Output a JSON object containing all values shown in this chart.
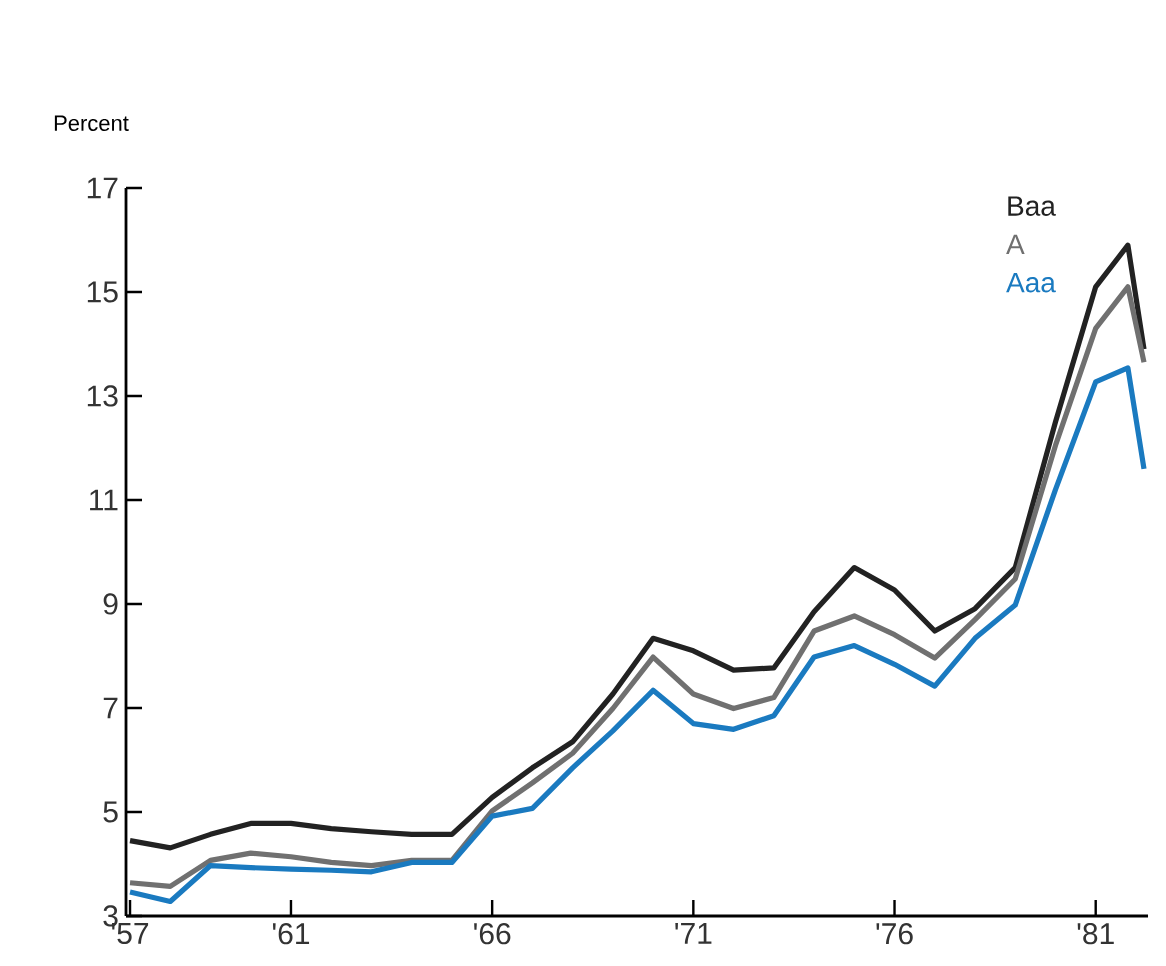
{
  "chart_data": {
    "type": "line",
    "ylabel": "Percent",
    "x": [
      1957,
      1958,
      1959,
      1960,
      1961,
      1962,
      1963,
      1964,
      1965,
      1966,
      1967,
      1968,
      1969,
      1970,
      1971,
      1972,
      1973,
      1974,
      1975,
      1976,
      1977,
      1978,
      1979,
      1980,
      1981,
      1981.8,
      1982.2
    ],
    "series": [
      {
        "name": "Baa",
        "color": "#222222",
        "values": [
          4.45,
          4.31,
          4.57,
          4.78,
          4.78,
          4.68,
          4.62,
          4.57,
          4.57,
          5.28,
          5.85,
          6.35,
          7.27,
          8.34,
          8.1,
          7.73,
          7.77,
          8.85,
          9.7,
          9.27,
          8.48,
          8.91,
          9.7,
          12.5,
          15.1,
          15.9,
          13.9
        ]
      },
      {
        "name": "A",
        "color": "#707070",
        "values": [
          3.64,
          3.57,
          4.07,
          4.21,
          4.14,
          4.03,
          3.97,
          4.07,
          4.07,
          5.02,
          5.56,
          6.13,
          6.99,
          7.98,
          7.27,
          6.99,
          7.2,
          8.48,
          8.77,
          8.41,
          7.96,
          8.7,
          9.48,
          12.05,
          14.3,
          15.1,
          13.65
        ]
      },
      {
        "name": "Aaa",
        "color": "#1a7ac0",
        "values": [
          3.46,
          3.28,
          3.97,
          3.93,
          3.9,
          3.88,
          3.85,
          4.03,
          4.03,
          4.92,
          5.07,
          5.85,
          6.56,
          7.34,
          6.7,
          6.59,
          6.85,
          7.98,
          8.2,
          7.84,
          7.42,
          8.34,
          8.98,
          11.2,
          13.27,
          13.54,
          11.6
        ]
      }
    ],
    "xlim": [
      1956.9,
      1982.3
    ],
    "xticks": [
      {
        "value": 1957,
        "label": "'57"
      },
      {
        "value": 1961,
        "label": "'61"
      },
      {
        "value": 1966,
        "label": "'66"
      },
      {
        "value": 1971,
        "label": "'71"
      },
      {
        "value": 1976,
        "label": "'76"
      },
      {
        "value": 1981,
        "label": "'81"
      }
    ],
    "ylim": [
      3,
      17
    ],
    "yticks": [
      3,
      5,
      7,
      9,
      11,
      13,
      15,
      17
    ],
    "grid": false,
    "legend": "top right",
    "marker": "none",
    "line_style": "solid"
  }
}
